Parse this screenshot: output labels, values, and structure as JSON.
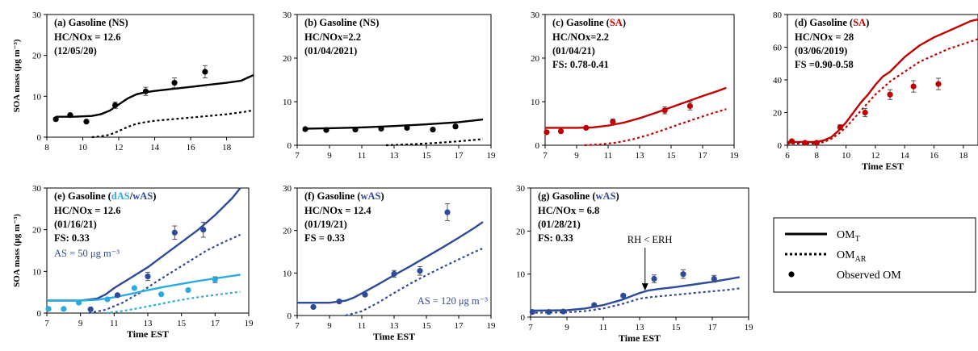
{
  "figure": {
    "ylabel": "SOA mass (μg m⁻³)",
    "xlabel": "Time EST"
  },
  "legend": {
    "items": [
      {
        "kind": "solid",
        "label": "OM",
        "sub": "T"
      },
      {
        "kind": "dotted",
        "label": "OM",
        "sub": "AR"
      },
      {
        "kind": "dot",
        "label": "Observed OM",
        "sub": ""
      }
    ]
  },
  "chart_data": [
    {
      "id": "a",
      "type": "line",
      "title_prefix": "(a) Gasoline (",
      "title_highlight": "NS",
      "title_suffix": ")",
      "highlight_color": "#000000",
      "lines": [
        "HC/NOx = 12.6",
        "(12/05/20)"
      ],
      "xlim": [
        8,
        19.5
      ],
      "ylim": [
        0,
        30
      ],
      "xticks": [
        8,
        10,
        12,
        14,
        16,
        18
      ],
      "yticks": [
        0,
        10,
        20,
        30
      ],
      "show_ylabel": true,
      "show_xlabel": false,
      "series": [
        {
          "style": "solid",
          "color": "#000000",
          "x": [
            8.5,
            9.5,
            10.5,
            11.0,
            11.5,
            12.0,
            12.5,
            13.0,
            13.5,
            14.0,
            15.0,
            16.0,
            17.0,
            18.0,
            18.8,
            19.2,
            19.5
          ],
          "y": [
            5.0,
            5.0,
            5.2,
            5.6,
            6.5,
            8.0,
            9.5,
            10.5,
            11.0,
            11.3,
            11.8,
            12.3,
            12.8,
            13.3,
            13.8,
            14.6,
            15.2
          ]
        },
        {
          "style": "dotted",
          "color": "#000000",
          "x": [
            10.5,
            11.0,
            11.5,
            12.0,
            12.5,
            13.0,
            13.5,
            14.0,
            15.0,
            16.0,
            17.0,
            18.0,
            19.0,
            19.5
          ],
          "y": [
            0.0,
            0.2,
            0.6,
            1.5,
            2.5,
            3.3,
            3.7,
            4.0,
            4.4,
            4.8,
            5.2,
            5.6,
            6.2,
            6.6
          ]
        },
        {
          "style": "points",
          "color": "#000000",
          "x": [
            8.5,
            9.3,
            10.2,
            11.8,
            13.5,
            15.1,
            16.8
          ],
          "y": [
            4.4,
            5.4,
            3.8,
            7.8,
            11.2,
            13.3,
            16.0
          ],
          "err": [
            0,
            0,
            0,
            0.8,
            1.0,
            1.2,
            1.5
          ]
        }
      ]
    },
    {
      "id": "b",
      "type": "line",
      "title_prefix": "(b) Gasoline (",
      "title_highlight": "NS",
      "title_suffix": ")",
      "highlight_color": "#000000",
      "lines": [
        "HC/NOx=2.2",
        "(01/04/2021)"
      ],
      "xlim": [
        7,
        19
      ],
      "ylim": [
        0,
        30
      ],
      "xticks": [
        7,
        9,
        11,
        13,
        15,
        17,
        19
      ],
      "yticks": [
        0,
        10,
        20,
        30
      ],
      "show_ylabel": false,
      "show_xlabel": false,
      "series": [
        {
          "style": "solid",
          "color": "#000000",
          "x": [
            7.5,
            9,
            11,
            13,
            15,
            17,
            18.5
          ],
          "y": [
            3.8,
            3.9,
            4.1,
            4.4,
            4.8,
            5.3,
            5.9
          ]
        },
        {
          "style": "dotted",
          "color": "#000000",
          "x": [
            12.5,
            14,
            15.5,
            17,
            18.5
          ],
          "y": [
            0.0,
            0.2,
            0.5,
            0.9,
            1.4
          ]
        },
        {
          "style": "points",
          "color": "#000000",
          "x": [
            7.5,
            8.8,
            10.6,
            12.2,
            13.8,
            15.4,
            16.8
          ],
          "y": [
            3.7,
            3.5,
            3.6,
            3.8,
            4.0,
            3.6,
            4.3
          ],
          "err": [
            0,
            0,
            0,
            0,
            0,
            0,
            0.4
          ]
        }
      ]
    },
    {
      "id": "c",
      "type": "line",
      "title_prefix": "(c) Gasoline (",
      "title_highlight": "SA",
      "title_suffix": ")",
      "highlight_color": "#c00000",
      "lines": [
        "HC/NOx=2.2",
        "(01/04/21)",
        "FS: 0.78-0.41"
      ],
      "xlim": [
        7,
        19
      ],
      "ylim": [
        0,
        30
      ],
      "xticks": [
        7,
        9,
        11,
        13,
        15,
        17,
        19
      ],
      "yticks": [
        0,
        10,
        20,
        30
      ],
      "show_ylabel": false,
      "show_xlabel": false,
      "series": [
        {
          "style": "solid",
          "color": "#c00000",
          "x": [
            7,
            9,
            10,
            11,
            12,
            13,
            14,
            15,
            16,
            17,
            18,
            18.5
          ],
          "y": [
            4.0,
            4.0,
            4.1,
            4.5,
            5.2,
            6.2,
            7.4,
            8.7,
            10.0,
            11.3,
            12.5,
            13.2
          ]
        },
        {
          "style": "dotted",
          "color": "#c00000",
          "x": [
            9.5,
            10.5,
            11.5,
            12.5,
            13.5,
            14.5,
            15.5,
            16.5,
            17.5,
            18.5
          ],
          "y": [
            0.0,
            0.2,
            0.6,
            1.3,
            2.3,
            3.5,
            4.8,
            6.0,
            7.2,
            8.3
          ]
        },
        {
          "style": "points",
          "color": "#c00000",
          "x": [
            7.1,
            8.0,
            9.6,
            11.3,
            14.6,
            16.2
          ],
          "y": [
            3.0,
            3.2,
            4.0,
            5.4,
            8.0,
            9.0
          ],
          "err": [
            0,
            0,
            0,
            0.6,
            0.8,
            0.9
          ]
        }
      ]
    },
    {
      "id": "d",
      "type": "line",
      "title_prefix": "(d) Gasoline (",
      "title_highlight": "SA",
      "title_suffix": ")",
      "highlight_color": "#c00000",
      "lines": [
        "HC/NOx = 28",
        "(03/06/2019)",
        "FS =0.90-0.58"
      ],
      "xlim": [
        6,
        19
      ],
      "ylim": [
        0,
        80
      ],
      "xticks": [
        6,
        8,
        10,
        12,
        14,
        16,
        18
      ],
      "yticks": [
        0,
        20,
        40,
        60,
        80
      ],
      "show_ylabel": false,
      "show_xlabel": true,
      "series": [
        {
          "style": "solid",
          "color": "#c00000",
          "x": [
            6,
            8,
            8.5,
            9,
            9.5,
            10,
            10.5,
            11,
            11.5,
            12,
            12.5,
            13,
            14,
            15,
            16,
            17,
            18,
            18.5,
            19
          ],
          "y": [
            2,
            2,
            3,
            5,
            9,
            14,
            20,
            26,
            31,
            37,
            42,
            45,
            54,
            61,
            66,
            70,
            74,
            76,
            77
          ]
        },
        {
          "style": "dotted",
          "color": "#c00000",
          "x": [
            6,
            8,
            8.5,
            9,
            9.5,
            10,
            10.5,
            11,
            11.5,
            12,
            12.5,
            13,
            14,
            15,
            16,
            17,
            18,
            19
          ],
          "y": [
            1,
            1,
            2,
            4,
            7,
            11,
            16,
            21,
            26,
            31,
            35,
            39,
            45,
            51,
            55,
            59,
            62,
            65
          ]
        },
        {
          "style": "points",
          "color": "#c00000",
          "x": [
            6.3,
            7.2,
            8.0,
            9.6,
            11.3,
            13.0,
            14.6,
            16.3
          ],
          "y": [
            2.5,
            1.5,
            1.5,
            11,
            20,
            31,
            36,
            37.5
          ],
          "err": [
            0,
            0,
            0,
            1.5,
            2.5,
            3,
            3.5,
            3.5
          ]
        }
      ]
    },
    {
      "id": "e",
      "type": "line",
      "title_prefix": "(e) Gasoline (",
      "title_highlight": "dAS",
      "title_mid": "/",
      "title_highlight2": "wAS",
      "title_suffix": ")",
      "highlight_color": "#29abe2",
      "highlight_color2": "#2e4a9a",
      "lines": [
        "HC/NOx = 12.6",
        "(01/16/21)",
        "FS: 0.33"
      ],
      "note": "AS = 50 μg m⁻³",
      "note_color": "#2e4a9a",
      "xlim": [
        7,
        19
      ],
      "ylim": [
        0,
        30
      ],
      "xticks": [
        7,
        9,
        11,
        13,
        15,
        17,
        19
      ],
      "yticks": [
        0,
        10,
        20,
        30
      ],
      "show_ylabel": true,
      "show_xlabel": true,
      "series": [
        {
          "style": "solid",
          "color": "#2e4a9a",
          "x": [
            7,
            9,
            10,
            10.5,
            11,
            12,
            13,
            14,
            15,
            16,
            17,
            18,
            18.5
          ],
          "y": [
            3,
            3,
            3.5,
            4.5,
            6,
            8.5,
            11,
            14,
            17,
            20,
            23.5,
            27.5,
            30
          ]
        },
        {
          "style": "dotted",
          "color": "#2e4a9a",
          "x": [
            9.5,
            10.5,
            11.5,
            12.5,
            13.5,
            14.5,
            15.5,
            16.5,
            17.5,
            18.5
          ],
          "y": [
            0,
            0.8,
            2.5,
            4.8,
            7.5,
            10,
            12.5,
            15,
            17,
            18.8
          ]
        },
        {
          "style": "solid",
          "color": "#29abe2",
          "x": [
            7,
            9,
            10,
            11,
            12,
            13,
            14,
            15,
            16,
            17,
            18,
            18.5
          ],
          "y": [
            3,
            3,
            3.2,
            3.8,
            4.6,
            5.5,
            6.3,
            7.0,
            7.7,
            8.3,
            8.9,
            9.2
          ]
        },
        {
          "style": "dotted",
          "color": "#29abe2",
          "x": [
            10.5,
            11.5,
            12.5,
            13.5,
            14.5,
            15.5,
            16.5,
            17.5,
            18.5
          ],
          "y": [
            0,
            0.5,
            1.2,
            2,
            2.8,
            3.5,
            4.1,
            4.6,
            5.1
          ]
        },
        {
          "style": "points",
          "color": "#2e4a9a",
          "x": [
            9.6,
            11.2,
            13.0,
            14.6,
            16.3
          ],
          "y": [
            0.9,
            4.3,
            8.8,
            19.3,
            20.0
          ],
          "err": [
            0,
            0,
            1.0,
            1.6,
            1.8
          ]
        },
        {
          "style": "points",
          "color": "#29abe2",
          "x": [
            7.1,
            8.0,
            8.9,
            10.6,
            12.2,
            13.8,
            15.4,
            17.0
          ],
          "y": [
            1.0,
            1.0,
            2.5,
            3.3,
            6.0,
            4.5,
            5.5,
            8.0
          ],
          "err": [
            0,
            0,
            0,
            0,
            0,
            0,
            0,
            0.7
          ]
        }
      ]
    },
    {
      "id": "f",
      "type": "line",
      "title_prefix": "(f) Gasoline (",
      "title_highlight": "wAS",
      "title_suffix": ")",
      "highlight_color": "#2e4a9a",
      "lines": [
        "HC/NOx = 12.4",
        "(01/19/21)",
        "FS = 0.33"
      ],
      "note": "AS = 120 μg m⁻³",
      "note_color": "#2e4a9a",
      "xlim": [
        7,
        19
      ],
      "ylim": [
        0,
        30
      ],
      "xticks": [
        7,
        9,
        11,
        13,
        15,
        17,
        19
      ],
      "yticks": [
        0,
        10,
        20,
        30
      ],
      "show_ylabel": false,
      "show_xlabel": true,
      "series": [
        {
          "style": "solid",
          "color": "#2e4a9a",
          "x": [
            7,
            9,
            10,
            10.5,
            11,
            12,
            13,
            14,
            15,
            16,
            17,
            18,
            18.5
          ],
          "y": [
            3,
            3,
            3.5,
            4.2,
            5.2,
            7.3,
            9.5,
            11.6,
            13.8,
            16,
            18.3,
            20.7,
            22
          ]
        },
        {
          "style": "dotted",
          "color": "#2e4a9a",
          "x": [
            10,
            11,
            12,
            13,
            14,
            15,
            16,
            17,
            18,
            18.5
          ],
          "y": [
            0,
            1,
            3,
            5.3,
            7.5,
            9.5,
            11.4,
            13.2,
            15,
            15.8
          ]
        },
        {
          "style": "points",
          "color": "#2e4a9a",
          "x": [
            8.0,
            9.6,
            11.2,
            13.0,
            14.6,
            16.3
          ],
          "y": [
            2.0,
            3.3,
            4.9,
            9.8,
            10.5,
            24.3
          ],
          "err": [
            0,
            0,
            0,
            0.8,
            1.0,
            2.0
          ]
        }
      ]
    },
    {
      "id": "g",
      "type": "line",
      "title_prefix": "(g) Gasoline (",
      "title_highlight": "wAS",
      "title_suffix": ")",
      "highlight_color": "#2e4a9a",
      "lines": [
        "HC/NOx = 6.8",
        "(01/28/21)",
        "FS: 0.33"
      ],
      "annotation": {
        "text": "RH < ERH",
        "x": 13.3
      },
      "xlim": [
        7,
        19
      ],
      "ylim": [
        0,
        30
      ],
      "xticks": [
        7,
        9,
        11,
        13,
        15,
        17,
        19
      ],
      "yticks": [
        0,
        10,
        20,
        30
      ],
      "show_ylabel": false,
      "show_xlabel": true,
      "series": [
        {
          "style": "solid",
          "color": "#2e4a9a",
          "x": [
            7,
            9,
            10,
            11,
            12,
            13,
            13.5,
            14,
            15,
            16,
            17,
            18,
            18.5
          ],
          "y": [
            1.5,
            1.6,
            2,
            2.8,
            4.0,
            5.6,
            6.2,
            6.5,
            7.0,
            7.6,
            8.2,
            8.9,
            9.3
          ]
        },
        {
          "style": "dotted",
          "color": "#2e4a9a",
          "x": [
            7,
            9,
            10,
            11,
            12,
            13,
            13.5,
            14,
            15,
            16,
            17,
            18,
            18.5
          ],
          "y": [
            1.0,
            1.1,
            1.4,
            2.0,
            3.0,
            4.3,
            4.6,
            4.8,
            5.2,
            5.6,
            6.0,
            6.4,
            6.7
          ]
        },
        {
          "style": "points",
          "color": "#2e4a9a",
          "x": [
            7.1,
            8.0,
            8.8,
            10.5,
            12.1,
            13.8,
            15.4,
            17.1
          ],
          "y": [
            1.2,
            1.2,
            1.3,
            2.8,
            5.0,
            8.9,
            10.0,
            8.9
          ],
          "err": [
            0,
            0,
            0,
            0,
            0,
            0.9,
            1.0,
            0.8
          ]
        }
      ]
    }
  ]
}
